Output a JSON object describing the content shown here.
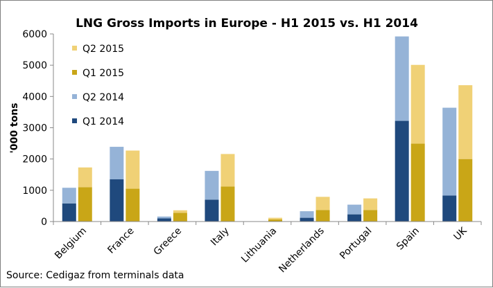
{
  "chart_data": {
    "type": "bar",
    "stacked": true,
    "title": "LNG Gross Imports in Europe - H1 2015 vs. H1 2014",
    "ylabel": "'000 tons",
    "xlabel": "",
    "ylim": [
      0,
      6000
    ],
    "yticks": [
      0,
      1000,
      2000,
      3000,
      4000,
      5000,
      6000
    ],
    "grid": false,
    "legend_position": "top-left",
    "categories": [
      "Belgium",
      "France",
      "Greece",
      "Italy",
      "Lithuania",
      "Netherlands",
      "Portugal",
      "Spain",
      "UK"
    ],
    "groups": [
      {
        "name": "2014",
        "series": [
          {
            "name": "Q1 2014",
            "color": "#1f497d",
            "values": [
              580,
              1350,
              100,
              700,
              0,
              120,
              230,
              3220,
              830
            ]
          },
          {
            "name": "Q2 2014",
            "color": "#95b3d7",
            "values": [
              500,
              1040,
              60,
              920,
              0,
              210,
              310,
              2700,
              2810
            ]
          }
        ]
      },
      {
        "name": "2015",
        "series": [
          {
            "name": "Q1 2015",
            "color": "#c9a617",
            "values": [
              1100,
              1050,
              280,
              1120,
              70,
              370,
              370,
              2490,
              2000
            ]
          },
          {
            "name": "Q2 2015",
            "color": "#f0d176",
            "values": [
              630,
              1220,
              80,
              1040,
              50,
              420,
              370,
              2520,
              2360
            ]
          }
        ]
      }
    ],
    "legend_order": [
      "Q2 2015",
      "Q1 2015",
      "Q2 2014",
      "Q1 2014"
    ],
    "source": "Source: Cedigaz from terminals data"
  }
}
